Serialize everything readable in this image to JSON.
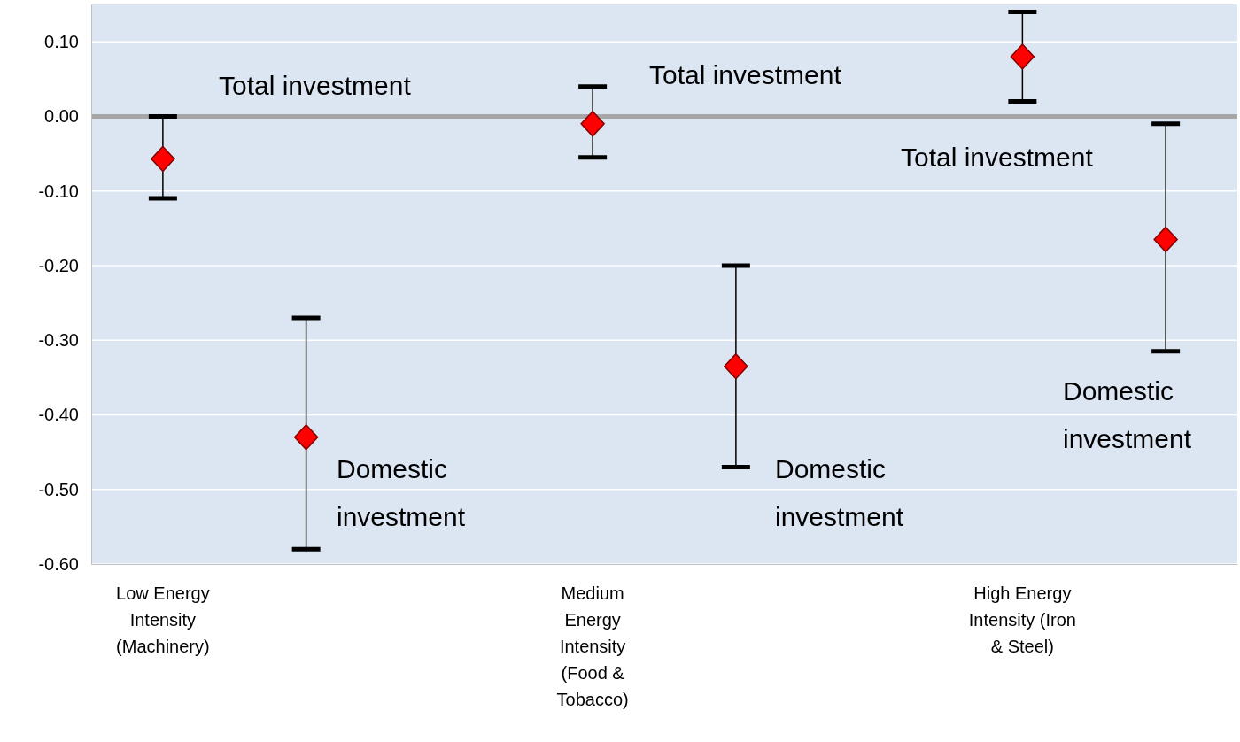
{
  "chart_data": {
    "type": "scatter",
    "categories": [
      "Low Energy Intensity (Machinery)",
      null,
      null,
      "Medium Energy Intensity (Food & Tobacco)",
      null,
      null,
      "High Energy Intensity (Iron & Steel)",
      null
    ],
    "series": [
      {
        "color": "#ff0000",
        "values": [
          -0.057,
          -0.43,
          null,
          -0.01,
          -0.335,
          null,
          0.08,
          -0.165
        ],
        "errors": [
          [
            -0.11,
            0.0
          ],
          [
            -0.58,
            -0.27
          ],
          null,
          [
            -0.055,
            0.04
          ],
          [
            -0.47,
            -0.2
          ],
          null,
          [
            0.02,
            0.14
          ],
          [
            -0.315,
            -0.01
          ]
        ]
      }
    ],
    "marker": "diamond",
    "ylim": [
      -0.6,
      0.15
    ],
    "yticks": [
      {
        "value": -0.6,
        "label": "-0.60"
      },
      {
        "value": -0.5,
        "label": "-0.50"
      },
      {
        "value": -0.4,
        "label": "-0.40"
      },
      {
        "value": -0.3,
        "label": "-0.30"
      },
      {
        "value": -0.2,
        "label": "-0.20"
      },
      {
        "value": -0.1,
        "label": "-0.10"
      },
      {
        "value": 0,
        "label": "0.00"
      },
      {
        "value": 0.1,
        "label": "0.10"
      }
    ],
    "grid": "y",
    "ref_lines": [
      {
        "axis": "y",
        "value": 0,
        "color": "#a6a6a6"
      }
    ],
    "annotations": [
      "Total investment",
      "Domestic investment",
      "Total investment",
      "Domestic investment",
      "Total investment",
      "Domestic investment"
    ]
  }
}
